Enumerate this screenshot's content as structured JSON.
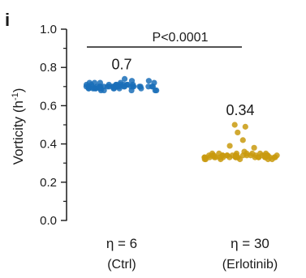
{
  "panel_label": "i",
  "chart_data": {
    "type": "scatter",
    "title": "",
    "ylabel": "Vorticity (h⁻¹)",
    "ylabel_main": "Vorticity",
    "ylabel_unit_prefix": "(h",
    "ylabel_unit_sup": "-1",
    "ylabel_unit_suffix": ")",
    "ylim": [
      0.0,
      1.0
    ],
    "yticks": [
      "0.0",
      "0.2",
      "0.4",
      "0.6",
      "0.8",
      "1.0"
    ],
    "ytick_values": [
      0.0,
      0.2,
      0.4,
      0.6,
      0.8,
      1.0
    ],
    "grid": false,
    "categories": [
      {
        "line1": "η = 6",
        "line2": "(Ctrl)"
      },
      {
        "line1": "η = 30",
        "line2": "(Erlotinib)"
      }
    ],
    "series": [
      {
        "color": "#1a6fb8",
        "mean": 0.7,
        "mean_label": "0.7",
        "values": [
          0.69,
          0.7,
          0.71,
          0.68,
          0.7,
          0.72,
          0.69,
          0.7,
          0.71,
          0.7,
          0.68,
          0.69,
          0.73,
          0.7,
          0.71,
          0.69,
          0.7,
          0.72,
          0.74,
          0.7,
          0.69,
          0.71,
          0.7,
          0.68,
          0.7,
          0.71,
          0.72,
          0.7,
          0.69,
          0.7,
          0.71,
          0.7,
          0.69,
          0.68,
          0.7,
          0.72,
          0.71,
          0.7,
          0.69,
          0.7,
          0.7,
          0.71,
          0.69,
          0.7,
          0.7,
          0.73,
          0.7,
          0.69,
          0.71,
          0.7,
          0.7,
          0.68,
          0.69,
          0.7,
          0.71,
          0.72,
          0.7,
          0.69,
          0.7,
          0.7
        ]
      },
      {
        "color": "#c99a0e",
        "mean": 0.34,
        "mean_label": "0.34",
        "values": [
          0.33,
          0.34,
          0.33,
          0.32,
          0.34,
          0.33,
          0.35,
          0.33,
          0.34,
          0.32,
          0.33,
          0.34,
          0.33,
          0.35,
          0.34,
          0.33,
          0.32,
          0.34,
          0.33,
          0.34,
          0.36,
          0.33,
          0.34,
          0.33,
          0.35,
          0.34,
          0.38,
          0.42,
          0.46,
          0.49,
          0.5,
          0.39,
          0.35,
          0.34,
          0.33,
          0.34,
          0.33,
          0.32,
          0.34,
          0.33,
          0.35,
          0.34,
          0.33,
          0.34,
          0.32,
          0.33,
          0.34,
          0.33,
          0.35,
          0.34,
          0.33,
          0.34,
          0.33,
          0.32,
          0.34,
          0.33,
          0.34,
          0.33,
          0.35,
          0.34
        ]
      }
    ],
    "annotations": {
      "significance": "P<0.0001"
    }
  }
}
